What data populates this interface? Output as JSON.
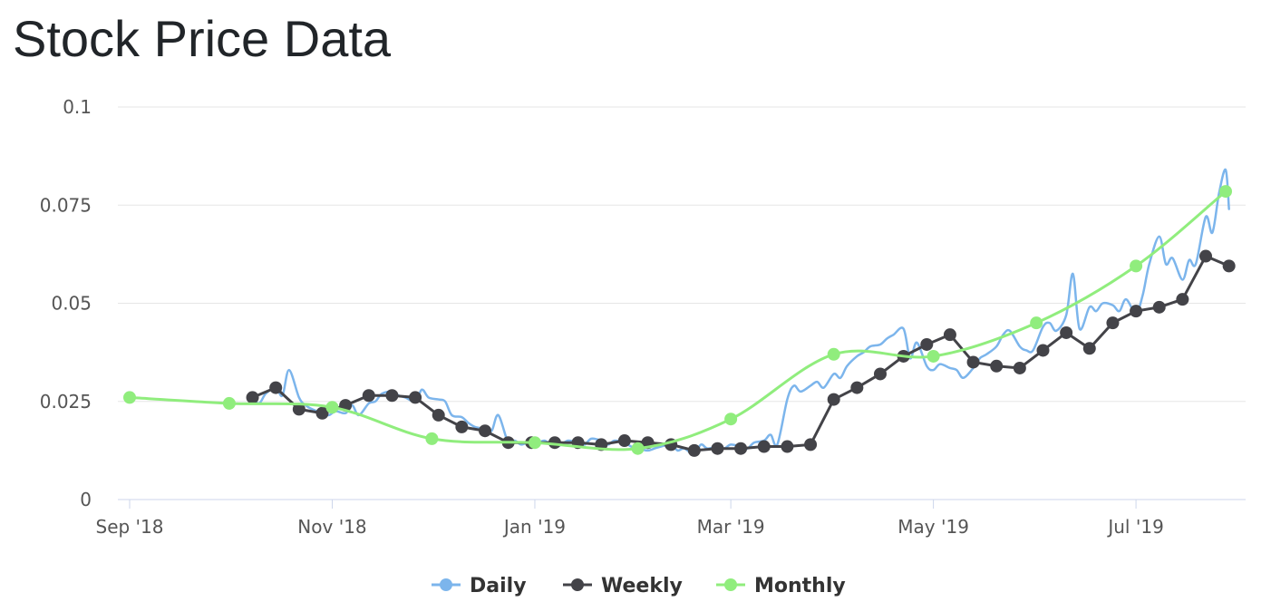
{
  "title": "Stock Price Data",
  "chart_data": {
    "type": "line",
    "ylim": [
      0,
      0.1
    ],
    "y_ticks": [
      0,
      0.025,
      0.05,
      0.075,
      0.1
    ],
    "y_tick_labels": [
      "0",
      "0.025",
      "0.05",
      "0.075",
      "0.1"
    ],
    "x_range": [
      "2018-09-01",
      "2019-07-28"
    ],
    "x_ticks": [
      "2018-09-01",
      "2018-11-01",
      "2019-01-01",
      "2019-03-01",
      "2019-05-01",
      "2019-07-01"
    ],
    "x_tick_labels": [
      "Sep '18",
      "Nov '18",
      "Jan '19",
      "Mar '19",
      "May '19",
      "Jul '19"
    ],
    "grid": true,
    "legend_position": "bottom-center",
    "series": [
      {
        "name": "Daily",
        "color": "#7cb5ec",
        "points": [
          [
            "2018-10-08",
            0.026
          ],
          [
            "2018-10-10",
            0.0245
          ],
          [
            "2018-10-12",
            0.027
          ],
          [
            "2018-10-15",
            0.0285
          ],
          [
            "2018-10-17",
            0.0265
          ],
          [
            "2018-10-19",
            0.033
          ],
          [
            "2018-10-22",
            0.026
          ],
          [
            "2018-10-24",
            0.024
          ],
          [
            "2018-10-26",
            0.023
          ],
          [
            "2018-10-29",
            0.022
          ],
          [
            "2018-10-31",
            0.0215
          ],
          [
            "2018-11-02",
            0.0225
          ],
          [
            "2018-11-05",
            0.022
          ],
          [
            "2018-11-07",
            0.024
          ],
          [
            "2018-11-09",
            0.0215
          ],
          [
            "2018-11-12",
            0.0245
          ],
          [
            "2018-11-14",
            0.025
          ],
          [
            "2018-11-16",
            0.027
          ],
          [
            "2018-11-19",
            0.0275
          ],
          [
            "2018-11-21",
            0.0265
          ],
          [
            "2018-11-23",
            0.026
          ],
          [
            "2018-11-26",
            0.025
          ],
          [
            "2018-11-28",
            0.028
          ],
          [
            "2018-11-30",
            0.026
          ],
          [
            "2018-12-03",
            0.0255
          ],
          [
            "2018-12-05",
            0.025
          ],
          [
            "2018-12-07",
            0.0215
          ],
          [
            "2018-12-10",
            0.021
          ],
          [
            "2018-12-12",
            0.0195
          ],
          [
            "2018-12-14",
            0.0185
          ],
          [
            "2018-12-17",
            0.018
          ],
          [
            "2018-12-19",
            0.0175
          ],
          [
            "2018-12-21",
            0.0215
          ],
          [
            "2018-12-24",
            0.0145
          ],
          [
            "2018-12-26",
            0.015
          ],
          [
            "2018-12-28",
            0.014
          ],
          [
            "2018-12-31",
            0.015
          ],
          [
            "2019-01-02",
            0.0145
          ],
          [
            "2019-01-04",
            0.015
          ],
          [
            "2019-01-07",
            0.0135
          ],
          [
            "2019-01-09",
            0.014
          ],
          [
            "2019-01-11",
            0.015
          ],
          [
            "2019-01-14",
            0.0145
          ],
          [
            "2019-01-16",
            0.014
          ],
          [
            "2019-01-18",
            0.0155
          ],
          [
            "2019-01-21",
            0.015
          ],
          [
            "2019-01-23",
            0.014
          ],
          [
            "2019-01-25",
            0.015
          ],
          [
            "2019-01-28",
            0.0145
          ],
          [
            "2019-01-30",
            0.0135
          ],
          [
            "2019-02-01",
            0.013
          ],
          [
            "2019-02-04",
            0.0125
          ],
          [
            "2019-02-06",
            0.013
          ],
          [
            "2019-02-08",
            0.0135
          ],
          [
            "2019-02-11",
            0.014
          ],
          [
            "2019-02-13",
            0.0125
          ],
          [
            "2019-02-15",
            0.013
          ],
          [
            "2019-02-18",
            0.0115
          ],
          [
            "2019-02-20",
            0.014
          ],
          [
            "2019-02-22",
            0.013
          ],
          [
            "2019-02-25",
            0.0135
          ],
          [
            "2019-02-27",
            0.013
          ],
          [
            "2019-03-01",
            0.014
          ],
          [
            "2019-03-04",
            0.0135
          ],
          [
            "2019-03-06",
            0.013
          ],
          [
            "2019-03-08",
            0.0145
          ],
          [
            "2019-03-11",
            0.015
          ],
          [
            "2019-03-13",
            0.0165
          ],
          [
            "2019-03-15",
            0.014
          ],
          [
            "2019-03-18",
            0.0255
          ],
          [
            "2019-03-20",
            0.029
          ],
          [
            "2019-03-22",
            0.0275
          ],
          [
            "2019-03-25",
            0.029
          ],
          [
            "2019-03-27",
            0.03
          ],
          [
            "2019-03-29",
            0.0285
          ],
          [
            "2019-04-01",
            0.032
          ],
          [
            "2019-04-03",
            0.031
          ],
          [
            "2019-04-05",
            0.034
          ],
          [
            "2019-04-08",
            0.0365
          ],
          [
            "2019-04-10",
            0.0375
          ],
          [
            "2019-04-12",
            0.039
          ],
          [
            "2019-04-15",
            0.0395
          ],
          [
            "2019-04-17",
            0.041
          ],
          [
            "2019-04-19",
            0.042
          ],
          [
            "2019-04-22",
            0.0435
          ],
          [
            "2019-04-24",
            0.036
          ],
          [
            "2019-04-26",
            0.04
          ],
          [
            "2019-04-29",
            0.034
          ],
          [
            "2019-05-01",
            0.033
          ],
          [
            "2019-05-03",
            0.0345
          ],
          [
            "2019-05-06",
            0.0335
          ],
          [
            "2019-05-08",
            0.033
          ],
          [
            "2019-05-10",
            0.031
          ],
          [
            "2019-05-13",
            0.0335
          ],
          [
            "2019-05-15",
            0.036
          ],
          [
            "2019-05-17",
            0.037
          ],
          [
            "2019-05-20",
            0.039
          ],
          [
            "2019-05-22",
            0.042
          ],
          [
            "2019-05-24",
            0.043
          ],
          [
            "2019-05-27",
            0.039
          ],
          [
            "2019-05-29",
            0.038
          ],
          [
            "2019-05-31",
            0.038
          ],
          [
            "2019-06-03",
            0.044
          ],
          [
            "2019-06-05",
            0.045
          ],
          [
            "2019-06-07",
            0.043
          ],
          [
            "2019-06-10",
            0.047
          ],
          [
            "2019-06-12",
            0.0575
          ],
          [
            "2019-06-14",
            0.0435
          ],
          [
            "2019-06-17",
            0.049
          ],
          [
            "2019-06-19",
            0.048
          ],
          [
            "2019-06-21",
            0.05
          ],
          [
            "2019-06-24",
            0.0495
          ],
          [
            "2019-06-26",
            0.048
          ],
          [
            "2019-06-28",
            0.051
          ],
          [
            "2019-07-01",
            0.0475
          ],
          [
            "2019-07-03",
            0.052
          ],
          [
            "2019-07-05",
            0.06
          ],
          [
            "2019-07-08",
            0.067
          ],
          [
            "2019-07-10",
            0.06
          ],
          [
            "2019-07-12",
            0.0615
          ],
          [
            "2019-07-15",
            0.056
          ],
          [
            "2019-07-17",
            0.061
          ],
          [
            "2019-07-19",
            0.06
          ],
          [
            "2019-07-22",
            0.072
          ],
          [
            "2019-07-24",
            0.068
          ],
          [
            "2019-07-26",
            0.078
          ],
          [
            "2019-07-28",
            0.084
          ],
          [
            "2019-07-29",
            0.074
          ]
        ]
      },
      {
        "name": "Weekly",
        "color": "#434348",
        "points": [
          [
            "2018-10-08",
            0.026
          ],
          [
            "2018-10-15",
            0.0285
          ],
          [
            "2018-10-22",
            0.023
          ],
          [
            "2018-10-29",
            0.022
          ],
          [
            "2018-11-05",
            0.024
          ],
          [
            "2018-11-12",
            0.0265
          ],
          [
            "2018-11-19",
            0.0265
          ],
          [
            "2018-11-26",
            0.026
          ],
          [
            "2018-12-03",
            0.0215
          ],
          [
            "2018-12-10",
            0.0185
          ],
          [
            "2018-12-17",
            0.0175
          ],
          [
            "2018-12-24",
            0.0145
          ],
          [
            "2018-12-31",
            0.0145
          ],
          [
            "2019-01-07",
            0.0145
          ],
          [
            "2019-01-14",
            0.0145
          ],
          [
            "2019-01-21",
            0.014
          ],
          [
            "2019-01-28",
            0.015
          ],
          [
            "2019-02-04",
            0.0145
          ],
          [
            "2019-02-11",
            0.014
          ],
          [
            "2019-02-18",
            0.0125
          ],
          [
            "2019-02-25",
            0.013
          ],
          [
            "2019-03-04",
            0.013
          ],
          [
            "2019-03-11",
            0.0135
          ],
          [
            "2019-03-18",
            0.0135
          ],
          [
            "2019-03-25",
            0.014
          ],
          [
            "2019-04-01",
            0.0255
          ],
          [
            "2019-04-08",
            0.0285
          ],
          [
            "2019-04-15",
            0.032
          ],
          [
            "2019-04-22",
            0.0365
          ],
          [
            "2019-04-29",
            0.0395
          ],
          [
            "2019-05-06",
            0.042
          ],
          [
            "2019-05-13",
            0.035
          ],
          [
            "2019-05-20",
            0.034
          ],
          [
            "2019-05-27",
            0.0335
          ],
          [
            "2019-06-03",
            0.038
          ],
          [
            "2019-06-10",
            0.0425
          ],
          [
            "2019-06-17",
            0.0385
          ],
          [
            "2019-06-24",
            0.045
          ],
          [
            "2019-07-01",
            0.048
          ],
          [
            "2019-07-08",
            0.049
          ],
          [
            "2019-07-15",
            0.051
          ],
          [
            "2019-07-22",
            0.062
          ],
          [
            "2019-07-29",
            0.0595
          ]
        ]
      },
      {
        "name": "Monthly",
        "color": "#90ed7d",
        "points": [
          [
            "2018-09-01",
            0.026
          ],
          [
            "2018-10-01",
            0.0245
          ],
          [
            "2018-11-01",
            0.0235
          ],
          [
            "2018-12-01",
            0.0155
          ],
          [
            "2019-01-01",
            0.0145
          ],
          [
            "2019-02-01",
            0.013
          ],
          [
            "2019-03-01",
            0.0205
          ],
          [
            "2019-04-01",
            0.037
          ],
          [
            "2019-05-01",
            0.0365
          ],
          [
            "2019-06-01",
            0.045
          ],
          [
            "2019-07-01",
            0.0595
          ],
          [
            "2019-07-28",
            0.0785
          ]
        ]
      }
    ]
  }
}
